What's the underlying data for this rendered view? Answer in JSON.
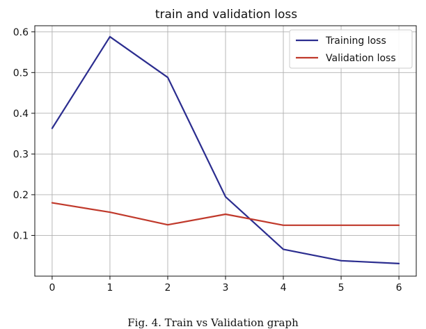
{
  "chart_data": {
    "type": "line",
    "title": "train and validation loss",
    "xlabel": "",
    "ylabel": "",
    "x": [
      0,
      1,
      2,
      3,
      4,
      5,
      6
    ],
    "xticks": [
      "0",
      "1",
      "2",
      "3",
      "4",
      "5",
      "6"
    ],
    "yticks": [
      "0.1",
      "0.2",
      "0.3",
      "0.4",
      "0.5",
      "0.6"
    ],
    "xlim": [
      -0.3,
      6.3
    ],
    "ylim": [
      0.0,
      0.615
    ],
    "grid": true,
    "legend_position": "top-right",
    "series": [
      {
        "name": "Training loss",
        "color": "#2b2d8f",
        "values": [
          0.363,
          0.588,
          0.488,
          0.195,
          0.066,
          0.038,
          0.031
        ]
      },
      {
        "name": "Validation loss",
        "color": "#c0392b",
        "values": [
          0.18,
          0.157,
          0.126,
          0.152,
          0.125,
          0.125,
          0.125
        ]
      }
    ]
  },
  "caption": "Fig. 4. Train vs Validation graph"
}
